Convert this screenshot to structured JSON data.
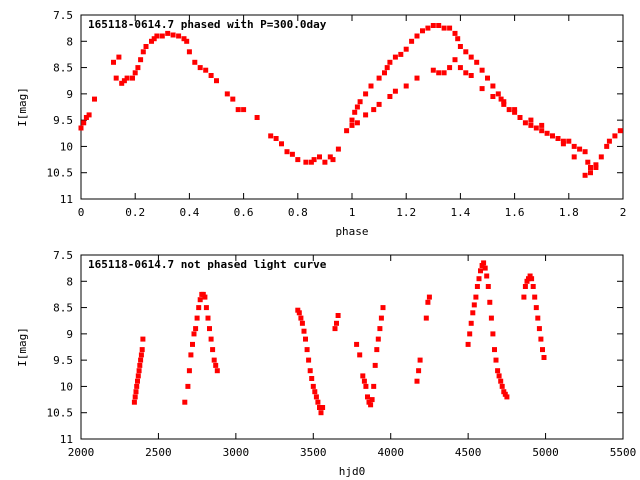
{
  "chart_data": [
    {
      "type": "scatter",
      "title": "165118-0614.7 phased with P=300.0day",
      "xlabel": "phase",
      "ylabel": "I[mag]",
      "xlim": [
        0,
        2
      ],
      "ylim": [
        7.5,
        11
      ],
      "y_inverted": true,
      "x_ticks": [
        "0",
        "0.2",
        "0.4",
        "0.6",
        "0.8",
        "1",
        "1.2",
        "1.4",
        "1.6",
        "1.8",
        "2"
      ],
      "y_ticks": [
        "7.5",
        "8",
        "8.5",
        "9",
        "9.5",
        "10",
        "10.5",
        "11"
      ],
      "marker_color": "#ff0000",
      "series": [
        {
          "x": [
            0.0,
            0.01,
            0.02,
            0.03,
            0.05,
            0.12,
            0.13,
            0.14,
            0.15,
            0.16,
            0.17,
            0.19,
            0.2,
            0.21,
            0.22,
            0.23,
            0.24,
            0.26,
            0.27,
            0.28,
            0.3,
            0.32,
            0.34,
            0.36,
            0.38,
            0.39,
            0.4,
            0.42,
            0.44,
            0.46,
            0.48,
            0.5,
            0.54,
            0.56,
            0.58,
            0.6,
            0.65,
            0.7,
            0.72,
            0.74,
            0.76,
            0.78,
            0.8,
            0.83,
            0.85,
            0.86,
            0.88,
            0.9,
            0.92,
            0.93,
            0.95,
            0.98,
            1.0,
            1.01,
            1.02,
            1.03,
            1.05,
            1.07,
            1.1,
            1.12,
            1.13,
            1.14,
            1.16,
            1.18,
            1.2,
            1.22,
            1.24,
            1.26,
            1.28,
            1.3,
            1.32,
            1.34,
            1.36,
            1.38,
            1.39,
            1.4,
            1.42,
            1.44,
            1.46,
            1.48,
            1.5,
            1.52,
            1.54,
            1.55,
            1.56,
            1.58,
            1.6,
            1.62,
            1.64,
            1.66,
            1.68,
            1.7,
            1.72,
            1.74,
            1.76,
            1.78,
            1.8,
            1.82,
            1.84,
            1.86,
            1.87,
            1.88,
            1.9,
            1.92,
            1.94,
            1.95,
            1.97,
            1.99,
            1.0,
            1.02,
            1.05,
            1.08,
            1.1,
            1.14,
            1.16,
            1.2,
            1.24,
            1.3,
            1.32,
            1.34,
            1.36,
            1.38,
            1.4,
            1.42,
            1.44,
            1.48,
            1.52,
            1.56,
            1.6,
            1.66,
            1.7,
            1.74,
            1.78,
            1.82,
            1.86,
            1.88,
            1.9
          ],
          "y": [
            9.65,
            9.55,
            9.45,
            9.4,
            9.1,
            8.4,
            8.7,
            8.3,
            8.8,
            8.75,
            8.7,
            8.7,
            8.6,
            8.5,
            8.35,
            8.2,
            8.1,
            8.0,
            7.95,
            7.9,
            7.9,
            7.85,
            7.88,
            7.9,
            7.95,
            8.0,
            8.2,
            8.4,
            8.5,
            8.55,
            8.65,
            8.75,
            9.0,
            9.1,
            9.3,
            9.3,
            9.45,
            9.8,
            9.85,
            9.95,
            10.1,
            10.15,
            10.25,
            10.3,
            10.3,
            10.25,
            10.2,
            10.3,
            10.2,
            10.25,
            10.05,
            9.7,
            9.5,
            9.35,
            9.25,
            9.15,
            9.0,
            8.85,
            8.7,
            8.6,
            8.5,
            8.4,
            8.3,
            8.25,
            8.15,
            8.0,
            7.9,
            7.8,
            7.75,
            7.7,
            7.7,
            7.75,
            7.75,
            7.85,
            7.95,
            8.1,
            8.2,
            8.3,
            8.4,
            8.55,
            8.7,
            8.85,
            9.0,
            9.1,
            9.2,
            9.3,
            9.35,
            9.45,
            9.55,
            9.6,
            9.65,
            9.7,
            9.75,
            9.8,
            9.85,
            9.9,
            9.9,
            10.0,
            10.05,
            10.1,
            10.3,
            10.4,
            10.4,
            10.2,
            10.0,
            9.9,
            9.8,
            9.7,
            9.6,
            9.55,
            9.4,
            9.3,
            9.2,
            9.05,
            8.95,
            8.85,
            8.7,
            8.55,
            8.6,
            8.6,
            8.5,
            8.35,
            8.5,
            8.6,
            8.65,
            8.9,
            9.05,
            9.15,
            9.3,
            9.5,
            9.6,
            9.8,
            9.95,
            10.2,
            10.55,
            10.5,
            10.35
          ]
        }
      ]
    },
    {
      "type": "scatter",
      "title": "165118-0614.7 not phased light curve",
      "xlabel": "hjd0",
      "ylabel": "I[mag]",
      "xlim": [
        2000,
        5500
      ],
      "ylim": [
        7.5,
        11
      ],
      "y_inverted": true,
      "x_ticks": [
        "2000",
        "2500",
        "3000",
        "3500",
        "4000",
        "4500",
        "5000",
        "5500"
      ],
      "y_ticks": [
        "7.5",
        "8",
        "8.5",
        "9",
        "9.5",
        "10",
        "10.5",
        "11"
      ],
      "marker_color": "#ff0000",
      "series": [
        {
          "x": [
            2345,
            2350,
            2355,
            2360,
            2365,
            2370,
            2375,
            2380,
            2385,
            2390,
            2395,
            2400,
            2670,
            2690,
            2700,
            2710,
            2720,
            2730,
            2740,
            2750,
            2760,
            2770,
            2780,
            2790,
            2800,
            2810,
            2820,
            2830,
            2840,
            2850,
            2860,
            2870,
            2880,
            3400,
            3410,
            3420,
            3430,
            3440,
            3450,
            3460,
            3470,
            3480,
            3490,
            3500,
            3510,
            3520,
            3530,
            3540,
            3550,
            3560,
            3640,
            3650,
            3660,
            3780,
            3800,
            3820,
            3830,
            3840,
            3850,
            3860,
            3870,
            3880,
            3890,
            3900,
            3910,
            3920,
            3930,
            3940,
            3950,
            4170,
            4180,
            4190,
            4230,
            4240,
            4250,
            4500,
            4510,
            4520,
            4530,
            4540,
            4550,
            4560,
            4570,
            4580,
            4590,
            4600,
            4610,
            4620,
            4630,
            4640,
            4650,
            4660,
            4670,
            4680,
            4690,
            4700,
            4710,
            4720,
            4730,
            4740,
            4750,
            4860,
            4870,
            4880,
            4890,
            4900,
            4910,
            4920,
            4930,
            4940,
            4950,
            4960,
            4970,
            4980,
            4990
          ],
          "y": [
            10.3,
            10.2,
            10.1,
            10.0,
            9.9,
            9.8,
            9.7,
            9.6,
            9.5,
            9.4,
            9.3,
            9.1,
            10.3,
            10.0,
            9.7,
            9.4,
            9.2,
            9.0,
            8.9,
            8.7,
            8.5,
            8.35,
            8.25,
            8.25,
            8.3,
            8.5,
            8.7,
            8.9,
            9.1,
            9.3,
            9.5,
            9.6,
            9.7,
            8.55,
            8.6,
            8.7,
            8.8,
            8.95,
            9.1,
            9.3,
            9.5,
            9.7,
            9.85,
            10.0,
            10.1,
            10.2,
            10.3,
            10.4,
            10.5,
            10.4,
            8.9,
            8.8,
            8.65,
            9.2,
            9.4,
            9.8,
            9.9,
            10.0,
            10.2,
            10.3,
            10.35,
            10.25,
            10.0,
            9.6,
            9.3,
            9.1,
            8.9,
            8.7,
            8.5,
            9.9,
            9.7,
            9.5,
            8.7,
            8.4,
            8.3,
            9.2,
            9.0,
            8.8,
            8.6,
            8.45,
            8.3,
            8.1,
            7.95,
            7.8,
            7.7,
            7.65,
            7.75,
            7.9,
            8.1,
            8.4,
            8.7,
            9.0,
            9.3,
            9.5,
            9.7,
            9.8,
            9.9,
            10.0,
            10.1,
            10.15,
            10.2,
            8.3,
            8.1,
            8.0,
            7.95,
            7.9,
            7.95,
            8.1,
            8.3,
            8.5,
            8.7,
            8.9,
            9.1,
            9.3,
            9.45
          ]
        }
      ]
    }
  ]
}
